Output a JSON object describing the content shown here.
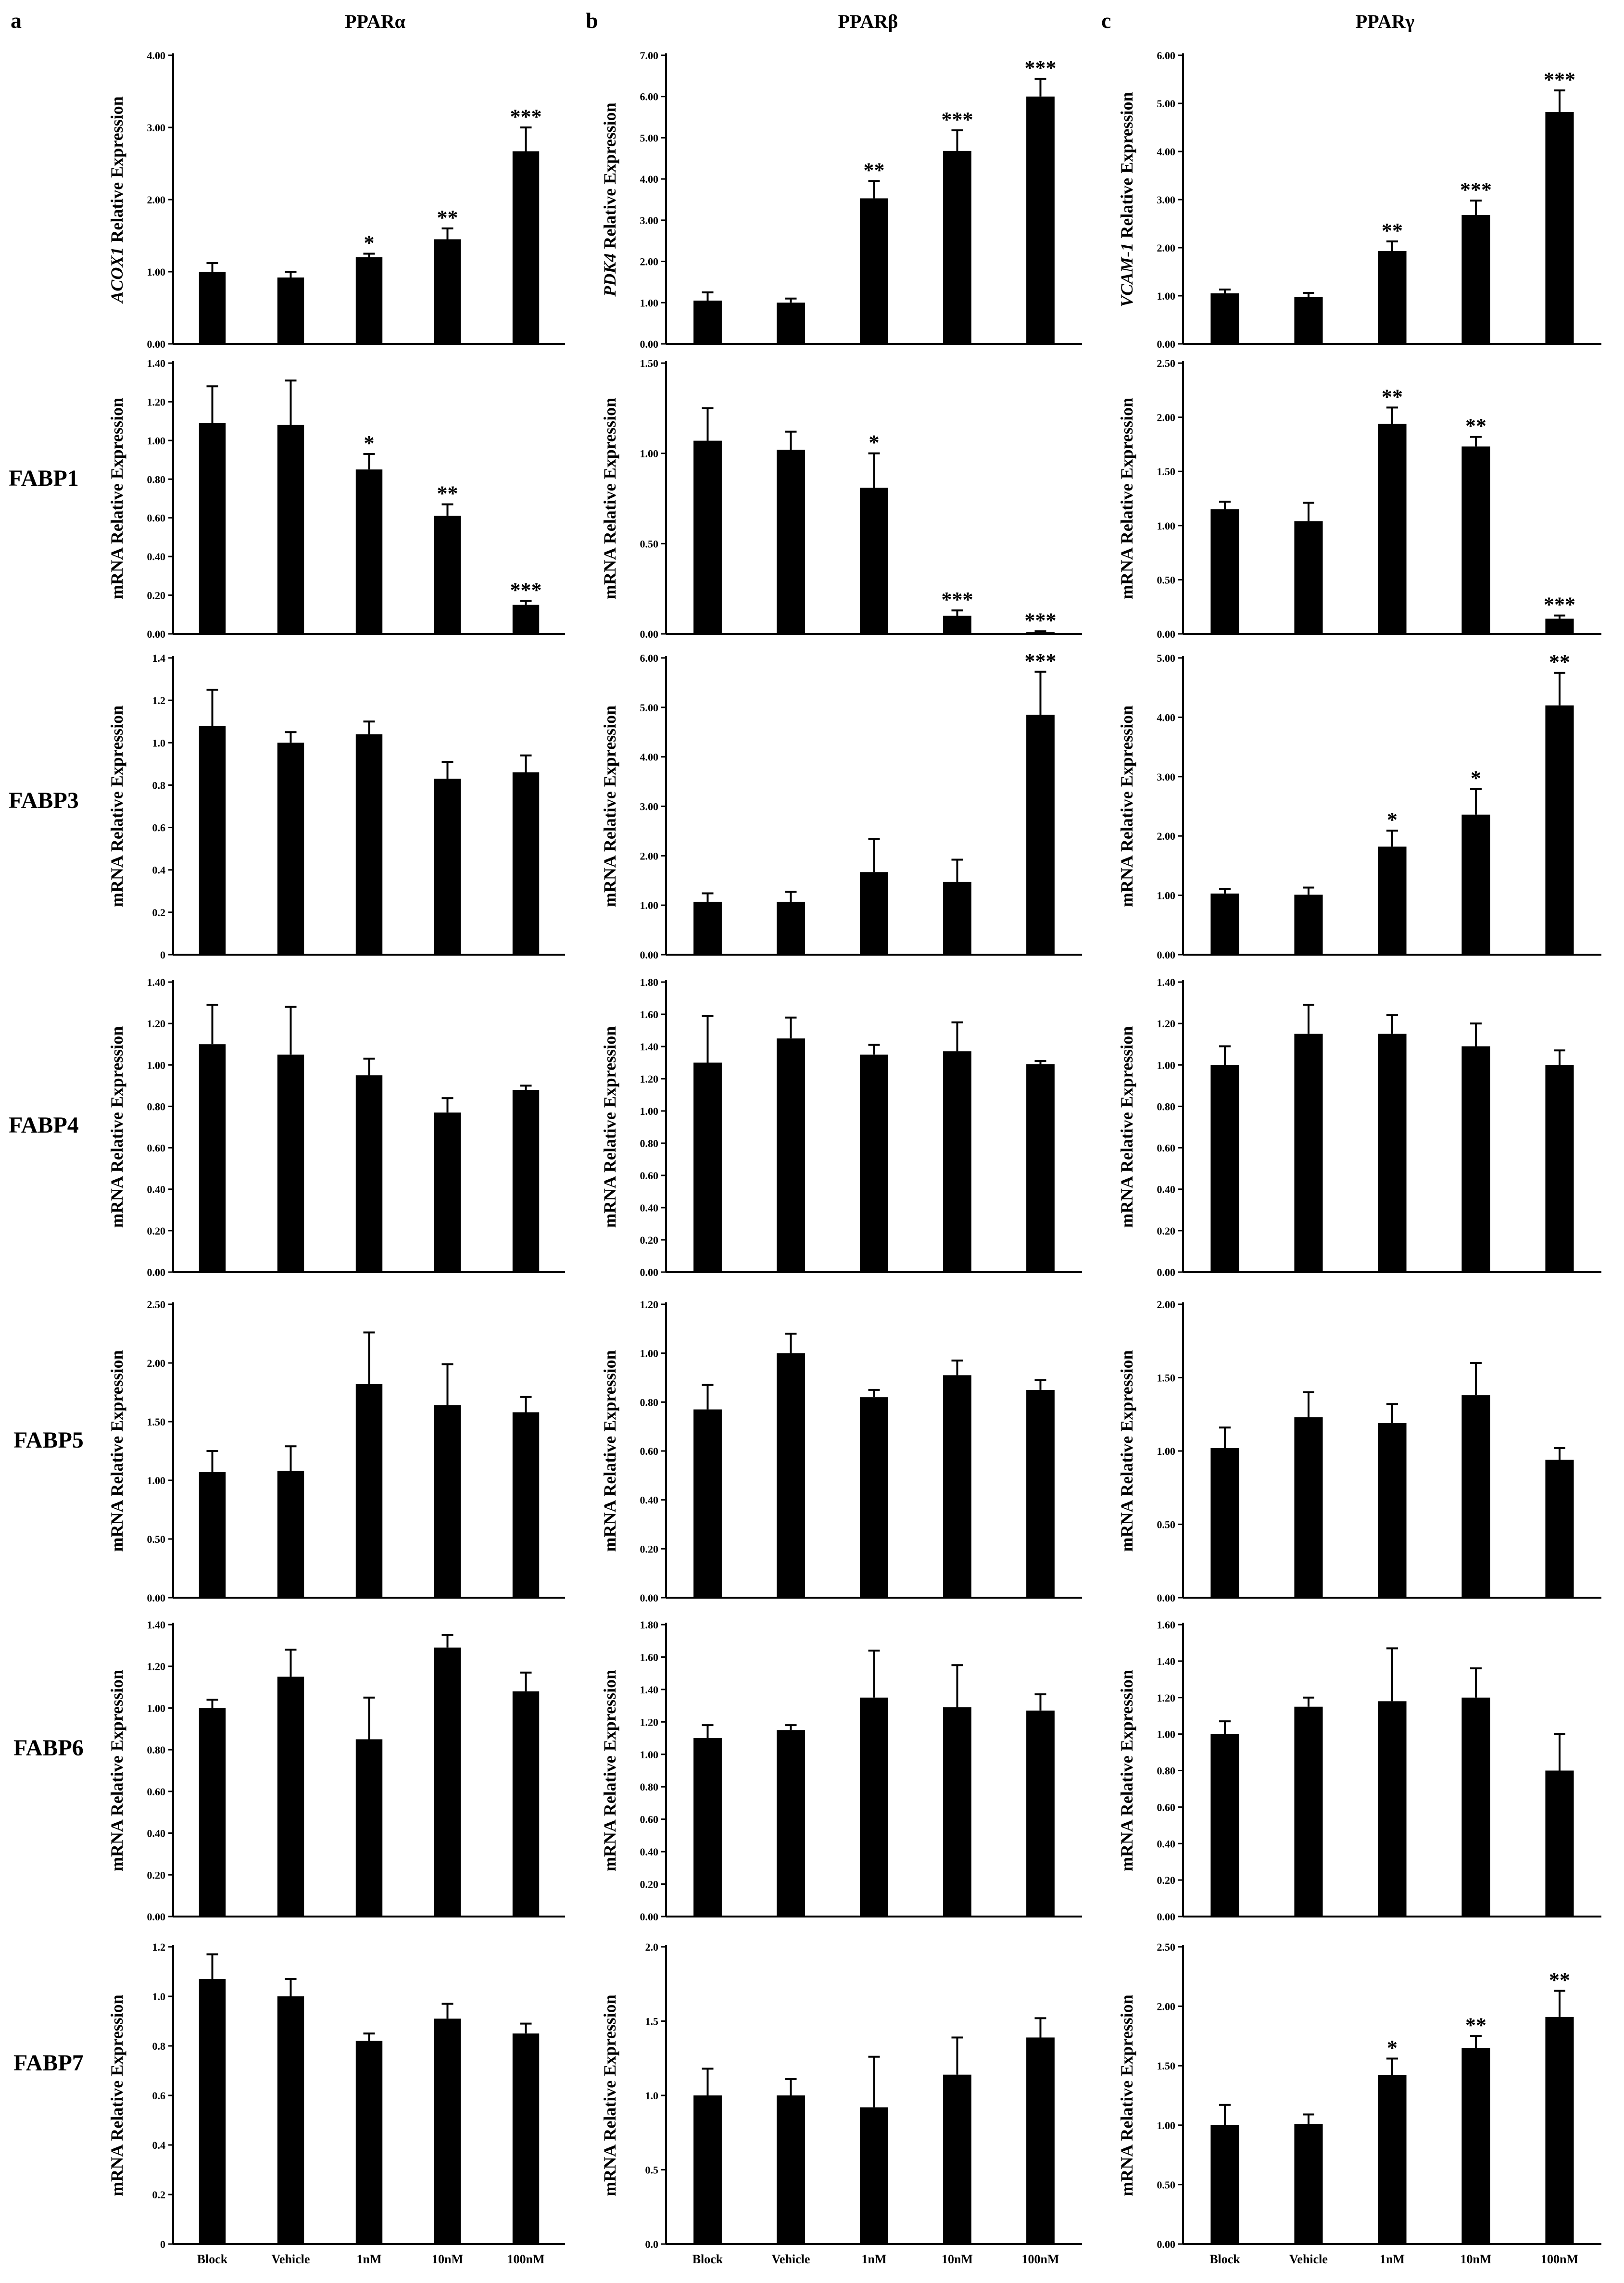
{
  "figure": {
    "panel_letters": [
      "a",
      "b",
      "c"
    ],
    "column_titles": [
      "PPARα",
      "PPARβ",
      "PPARγ"
    ],
    "row_labels": [
      "",
      "FABP1",
      "FABP3",
      "FABP4",
      "FABP5",
      "FABP6",
      "FABP7"
    ],
    "x_categories": [
      "Block",
      "Vehicle",
      "1nM",
      "10nM",
      "100nM"
    ],
    "colors": {
      "bar": "#000000",
      "axis": "#000000",
      "background": "#ffffff"
    }
  },
  "chart_data": [
    {
      "type": "bar",
      "panel": "a",
      "column": "PPARα",
      "row": "top",
      "ylabel_italic": "ACOX1",
      "ylabel_rest": " Relative Expression",
      "categories": [
        "Block",
        "Vehicle",
        "1nM",
        "10nM",
        "100nM"
      ],
      "values": [
        1.0,
        0.92,
        1.2,
        1.45,
        2.67
      ],
      "errors": [
        0.12,
        0.08,
        0.05,
        0.15,
        0.33
      ],
      "significance": [
        "",
        "",
        "*",
        "**",
        "***"
      ],
      "ylim": [
        0,
        4.0
      ],
      "ticks": [
        "0.00",
        "1.00",
        "2.00",
        "3.00",
        "4.00"
      ]
    },
    {
      "type": "bar",
      "panel": "b",
      "column": "PPARβ",
      "row": "top",
      "ylabel_italic": "PDK4",
      "ylabel_rest": " Relative Expression",
      "categories": [
        "Block",
        "Vehicle",
        "1nM",
        "10nM",
        "100nM"
      ],
      "values": [
        1.05,
        1.0,
        3.53,
        4.68,
        6.0
      ],
      "errors": [
        0.2,
        0.1,
        0.42,
        0.5,
        0.43
      ],
      "significance": [
        "",
        "",
        "**",
        "***",
        "***"
      ],
      "ylim": [
        0,
        7.0
      ],
      "ticks": [
        "0.00",
        "1.00",
        "2.00",
        "3.00",
        "4.00",
        "5.00",
        "6.00",
        "7.00"
      ]
    },
    {
      "type": "bar",
      "panel": "c",
      "column": "PPARγ",
      "row": "top",
      "ylabel_italic": "VCAM-1",
      "ylabel_rest": " Relative Expression",
      "categories": [
        "Block",
        "Vehicle",
        "1nM",
        "10nM",
        "100nM"
      ],
      "values": [
        1.05,
        0.98,
        1.93,
        2.68,
        4.82
      ],
      "errors": [
        0.08,
        0.08,
        0.2,
        0.3,
        0.45
      ],
      "significance": [
        "",
        "",
        "**",
        "***",
        "***"
      ],
      "ylim": [
        0,
        6.0
      ],
      "ticks": [
        "0.00",
        "1.00",
        "2.00",
        "3.00",
        "4.00",
        "5.00",
        "6.00"
      ]
    },
    {
      "type": "bar",
      "panel": "a",
      "column": "PPARα",
      "row": "FABP1",
      "ylabel": "mRNA Relative Expression",
      "categories": [
        "Block",
        "Vehicle",
        "1nM",
        "10nM",
        "100nM"
      ],
      "values": [
        1.09,
        1.08,
        0.85,
        0.61,
        0.15
      ],
      "errors": [
        0.19,
        0.23,
        0.08,
        0.06,
        0.02
      ],
      "significance": [
        "",
        "",
        "*",
        "**",
        "***"
      ],
      "ylim": [
        0,
        1.4
      ],
      "ticks": [
        "0.00",
        "0.20",
        "0.40",
        "0.60",
        "0.80",
        "1.00",
        "1.20",
        "1.40"
      ]
    },
    {
      "type": "bar",
      "panel": "b",
      "column": "PPARβ",
      "row": "FABP1",
      "ylabel": "mRNA Relative Expression",
      "categories": [
        "Block",
        "Vehicle",
        "1nM",
        "10nM",
        "100nM"
      ],
      "values": [
        1.07,
        1.02,
        0.81,
        0.1,
        0.01
      ],
      "errors": [
        0.18,
        0.1,
        0.19,
        0.03,
        0.005
      ],
      "significance": [
        "",
        "",
        "*",
        "***",
        "***"
      ],
      "ylim": [
        0,
        1.5
      ],
      "ticks": [
        "0.00",
        "0.50",
        "1.00",
        "1.50"
      ]
    },
    {
      "type": "bar",
      "panel": "c",
      "column": "PPARγ",
      "row": "FABP1",
      "ylabel": "mRNA Relative Expression",
      "categories": [
        "Block",
        "Vehicle",
        "1nM",
        "10nM",
        "100nM"
      ],
      "values": [
        1.15,
        1.04,
        1.94,
        1.73,
        0.14
      ],
      "errors": [
        0.07,
        0.17,
        0.15,
        0.09,
        0.03
      ],
      "significance": [
        "",
        "",
        "**",
        "**",
        "***"
      ],
      "ylim": [
        0,
        2.5
      ],
      "ticks": [
        "0.00",
        "0.50",
        "1.00",
        "1.50",
        "2.00",
        "2.50"
      ]
    },
    {
      "type": "bar",
      "panel": "a",
      "column": "PPARα",
      "row": "FABP3",
      "ylabel": "mRNA Relative Expression",
      "categories": [
        "Block",
        "Vehicle",
        "1nM",
        "10nM",
        "100nM"
      ],
      "values": [
        1.08,
        1.0,
        1.04,
        0.83,
        0.86
      ],
      "errors": [
        0.17,
        0.05,
        0.06,
        0.08,
        0.08
      ],
      "significance": [
        "",
        "",
        "",
        "",
        ""
      ],
      "ylim": [
        0,
        1.4
      ],
      "ticks": [
        "0",
        "0.2",
        "0.4",
        "0.6",
        "0.8",
        "1.0",
        "1.2",
        "1.4"
      ]
    },
    {
      "type": "bar",
      "panel": "b",
      "column": "PPARβ",
      "row": "FABP3",
      "ylabel": "mRNA Relative Expression",
      "categories": [
        "Block",
        "Vehicle",
        "1nM",
        "10nM",
        "100nM"
      ],
      "values": [
        1.07,
        1.07,
        1.67,
        1.47,
        4.85
      ],
      "errors": [
        0.17,
        0.2,
        0.67,
        0.45,
        0.87
      ],
      "significance": [
        "",
        "",
        "",
        "",
        "***"
      ],
      "ylim": [
        0,
        6.0
      ],
      "ticks": [
        "0.00",
        "1.00",
        "2.00",
        "3.00",
        "4.00",
        "5.00",
        "6.00"
      ]
    },
    {
      "type": "bar",
      "panel": "c",
      "column": "PPARγ",
      "row": "FABP3",
      "ylabel": "mRNA Relative Expression",
      "categories": [
        "Block",
        "Vehicle",
        "1nM",
        "10nM",
        "100nM"
      ],
      "values": [
        1.03,
        1.01,
        1.82,
        2.36,
        4.2
      ],
      "errors": [
        0.08,
        0.12,
        0.27,
        0.43,
        0.55
      ],
      "significance": [
        "",
        "",
        "*",
        "*",
        "**"
      ],
      "ylim": [
        0,
        5.0
      ],
      "ticks": [
        "0.00",
        "1.00",
        "2.00",
        "3.00",
        "4.00",
        "5.00"
      ]
    },
    {
      "type": "bar",
      "panel": "a",
      "column": "PPARα",
      "row": "FABP4",
      "ylabel": "mRNA Relative Expression",
      "categories": [
        "Block",
        "Vehicle",
        "1nM",
        "10nM",
        "100nM"
      ],
      "values": [
        1.1,
        1.05,
        0.95,
        0.77,
        0.88
      ],
      "errors": [
        0.19,
        0.23,
        0.08,
        0.07,
        0.02
      ],
      "significance": [
        "",
        "",
        "",
        "",
        ""
      ],
      "ylim": [
        0,
        1.4
      ],
      "ticks": [
        "0.00",
        "0.20",
        "0.40",
        "0.60",
        "0.80",
        "1.00",
        "1.20",
        "1.40"
      ]
    },
    {
      "type": "bar",
      "panel": "b",
      "column": "PPARβ",
      "row": "FABP4",
      "ylabel": "mRNA Relative Expression",
      "categories": [
        "Block",
        "Vehicle",
        "1nM",
        "10nM",
        "100nM"
      ],
      "values": [
        1.3,
        1.45,
        1.35,
        1.37,
        1.29
      ],
      "errors": [
        0.29,
        0.13,
        0.06,
        0.18,
        0.02
      ],
      "significance": [
        "",
        "",
        "",
        "",
        ""
      ],
      "ylim": [
        0,
        1.8
      ],
      "ticks": [
        "0.00",
        "0.20",
        "0.40",
        "0.60",
        "0.80",
        "1.00",
        "1.20",
        "1.40",
        "1.60",
        "1.80"
      ]
    },
    {
      "type": "bar",
      "panel": "c",
      "column": "PPARγ",
      "row": "FABP4",
      "ylabel": "mRNA Relative Expression",
      "categories": [
        "Block",
        "Vehicle",
        "1nM",
        "10nM",
        "100nM"
      ],
      "values": [
        1.0,
        1.15,
        1.15,
        1.09,
        1.0
      ],
      "errors": [
        0.09,
        0.14,
        0.09,
        0.11,
        0.07
      ],
      "significance": [
        "",
        "",
        "",
        "",
        ""
      ],
      "ylim": [
        0,
        1.4
      ],
      "ticks": [
        "0.00",
        "0.20",
        "0.40",
        "0.60",
        "0.80",
        "1.00",
        "1.20",
        "1.40"
      ]
    },
    {
      "type": "bar",
      "panel": "a",
      "column": "PPARα",
      "row": "FABP5",
      "ylabel": "mRNA Relative Expression",
      "categories": [
        "Block",
        "Vehicle",
        "1nM",
        "10nM",
        "100nM"
      ],
      "values": [
        1.07,
        1.08,
        1.82,
        1.64,
        1.58
      ],
      "errors": [
        0.18,
        0.21,
        0.44,
        0.35,
        0.13
      ],
      "significance": [
        "",
        "",
        "",
        "",
        ""
      ],
      "ylim": [
        0,
        2.5
      ],
      "ticks": [
        "0.00",
        "0.50",
        "1.00",
        "1.50",
        "2.00",
        "2.50"
      ]
    },
    {
      "type": "bar",
      "panel": "b",
      "column": "PPARβ",
      "row": "FABP5",
      "ylabel": "mRNA Relative Expression",
      "categories": [
        "Block",
        "Vehicle",
        "1nM",
        "10nM",
        "100nM"
      ],
      "values": [
        0.77,
        1.0,
        0.82,
        0.91,
        0.85
      ],
      "errors": [
        0.1,
        0.08,
        0.03,
        0.06,
        0.04
      ],
      "significance": [
        "",
        "",
        "",
        "",
        ""
      ],
      "ylim": [
        0,
        1.2
      ],
      "ticks": [
        "0.00",
        "0.20",
        "0.40",
        "0.60",
        "0.80",
        "1.00",
        "1.20"
      ]
    },
    {
      "type": "bar",
      "panel": "c",
      "column": "PPARγ",
      "row": "FABP5",
      "ylabel": "mRNA Relative Expression",
      "categories": [
        "Block",
        "Vehicle",
        "1nM",
        "10nM",
        "100nM"
      ],
      "values": [
        1.02,
        1.23,
        1.19,
        1.38,
        0.94
      ],
      "errors": [
        0.14,
        0.17,
        0.13,
        0.22,
        0.08
      ],
      "significance": [
        "",
        "",
        "",
        "",
        ""
      ],
      "ylim": [
        0,
        2.0
      ],
      "ticks": [
        "0.00",
        "0.50",
        "1.00",
        "1.50",
        "2.00"
      ]
    },
    {
      "type": "bar",
      "panel": "a",
      "column": "PPARα",
      "row": "FABP6",
      "ylabel": "mRNA Relative Expression",
      "categories": [
        "Block",
        "Vehicle",
        "1nM",
        "10nM",
        "100nM"
      ],
      "values": [
        1.0,
        1.15,
        0.85,
        1.29,
        1.08
      ],
      "errors": [
        0.04,
        0.13,
        0.2,
        0.06,
        0.09
      ],
      "significance": [
        "",
        "",
        "",
        "",
        ""
      ],
      "ylim": [
        0,
        1.4
      ],
      "ticks": [
        "0.00",
        "0.20",
        "0.40",
        "0.60",
        "0.80",
        "1.00",
        "1.20",
        "1.40"
      ]
    },
    {
      "type": "bar",
      "panel": "b",
      "column": "PPARβ",
      "row": "FABP6",
      "ylabel": "mRNA Relative Expression",
      "categories": [
        "Block",
        "Vehicle",
        "1nM",
        "10nM",
        "100nM"
      ],
      "values": [
        1.1,
        1.15,
        1.35,
        1.29,
        1.27
      ],
      "errors": [
        0.08,
        0.03,
        0.29,
        0.26,
        0.1
      ],
      "significance": [
        "",
        "",
        "",
        "",
        ""
      ],
      "ylim": [
        0,
        1.8
      ],
      "ticks": [
        "0.00",
        "0.20",
        "0.40",
        "0.60",
        "0.80",
        "1.00",
        "1.20",
        "1.40",
        "1.60",
        "1.80"
      ]
    },
    {
      "type": "bar",
      "panel": "c",
      "column": "PPARγ",
      "row": "FABP6",
      "ylabel": "mRNA Relative Expression",
      "categories": [
        "Block",
        "Vehicle",
        "1nM",
        "10nM",
        "100nM"
      ],
      "values": [
        1.0,
        1.15,
        1.18,
        1.2,
        0.8
      ],
      "errors": [
        0.07,
        0.05,
        0.29,
        0.16,
        0.2
      ],
      "significance": [
        "",
        "",
        "",
        "",
        ""
      ],
      "ylim": [
        0,
        1.6
      ],
      "ticks": [
        "0.00",
        "0.20",
        "0.40",
        "0.60",
        "0.80",
        "1.00",
        "1.20",
        "1.40",
        "1.60"
      ]
    },
    {
      "type": "bar",
      "panel": "a",
      "column": "PPARα",
      "row": "FABP7",
      "ylabel": "mRNA Relative Expression",
      "categories": [
        "Block",
        "Vehicle",
        "1nM",
        "10nM",
        "100nM"
      ],
      "values": [
        1.07,
        1.0,
        0.82,
        0.91,
        0.85
      ],
      "errors": [
        0.1,
        0.07,
        0.03,
        0.06,
        0.04
      ],
      "significance": [
        "",
        "",
        "",
        "",
        ""
      ],
      "ylim": [
        0,
        1.2
      ],
      "ticks": [
        "0",
        "0.2",
        "0.4",
        "0.6",
        "0.8",
        "1.0",
        "1.2"
      ]
    },
    {
      "type": "bar",
      "panel": "b",
      "column": "PPARβ",
      "row": "FABP7",
      "ylabel": "mRNA Relative Expression",
      "categories": [
        "Block",
        "Vehicle",
        "1nM",
        "10nM",
        "100nM"
      ],
      "values": [
        1.0,
        1.0,
        0.92,
        1.14,
        1.39
      ],
      "errors": [
        0.18,
        0.11,
        0.34,
        0.25,
        0.13
      ],
      "significance": [
        "",
        "",
        "",
        "",
        ""
      ],
      "ylim": [
        0,
        2.0
      ],
      "ticks": [
        "0.0",
        "0.5",
        "1.0",
        "1.5",
        "2.0"
      ]
    },
    {
      "type": "bar",
      "panel": "c",
      "column": "PPARγ",
      "row": "FABP7",
      "ylabel": "mRNA Relative Expression",
      "categories": [
        "Block",
        "Vehicle",
        "1nM",
        "10nM",
        "100nM"
      ],
      "values": [
        1.0,
        1.01,
        1.42,
        1.65,
        1.91
      ],
      "errors": [
        0.17,
        0.08,
        0.14,
        0.1,
        0.22
      ],
      "significance": [
        "",
        "",
        "*",
        "**",
        "**"
      ],
      "ylim": [
        0,
        2.5
      ],
      "ticks": [
        "0.00",
        "0.50",
        "1.00",
        "1.50",
        "2.00",
        "2.50"
      ]
    }
  ]
}
